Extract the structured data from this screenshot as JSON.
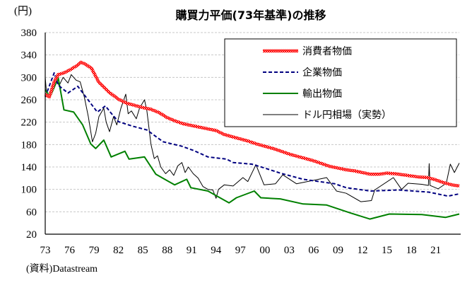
{
  "chart_data": {
    "type": "line",
    "title": "購買力平価(73年基準)の推移",
    "ylabel": "(円)",
    "xlabel": "",
    "source": "(資料)Datastream",
    "ylim": [
      20,
      380
    ],
    "yticks": [
      20,
      60,
      100,
      140,
      180,
      220,
      260,
      300,
      340,
      380
    ],
    "xlim": [
      1973,
      2023.9
    ],
    "xticks": [
      {
        "year": 1973,
        "label": "73"
      },
      {
        "year": 1976,
        "label": "76"
      },
      {
        "year": 1979,
        "label": "79"
      },
      {
        "year": 1982,
        "label": "82"
      },
      {
        "year": 1985,
        "label": "85"
      },
      {
        "year": 1988,
        "label": "88"
      },
      {
        "year": 1991,
        "label": "91"
      },
      {
        "year": 1994,
        "label": "94"
      },
      {
        "year": 1997,
        "label": "97"
      },
      {
        "year": 2000,
        "label": "00"
      },
      {
        "year": 2003,
        "label": "03"
      },
      {
        "year": 2006,
        "label": "06"
      },
      {
        "year": 2009,
        "label": "09"
      },
      {
        "year": 2012,
        "label": "12"
      },
      {
        "year": 2015,
        "label": "15"
      },
      {
        "year": 2018,
        "label": "18"
      },
      {
        "year": 2021,
        "label": "21"
      }
    ],
    "grid": true,
    "legend_position": "top-right",
    "series": [
      {
        "name": "消費者物価",
        "color": "#ff0000",
        "style": "checkered",
        "points": [
          [
            1973,
            270
          ],
          [
            1973.5,
            265
          ],
          [
            1974.1,
            292
          ],
          [
            1974.6,
            305
          ],
          [
            1975.3,
            308
          ],
          [
            1976,
            313
          ],
          [
            1976.8,
            320
          ],
          [
            1977.4,
            327
          ],
          [
            1978,
            323
          ],
          [
            1978.7,
            316
          ],
          [
            1979.6,
            291
          ],
          [
            1980.8,
            274
          ],
          [
            1982,
            261
          ],
          [
            1983,
            254
          ],
          [
            1984,
            250
          ],
          [
            1985,
            246
          ],
          [
            1986,
            243
          ],
          [
            1987,
            237
          ],
          [
            1988,
            228
          ],
          [
            1989,
            222
          ],
          [
            1990,
            217
          ],
          [
            1991,
            214
          ],
          [
            1992,
            211
          ],
          [
            1993,
            208
          ],
          [
            1994,
            205
          ],
          [
            1995,
            198
          ],
          [
            1996,
            194
          ],
          [
            1997,
            190
          ],
          [
            1998,
            186
          ],
          [
            1999,
            181
          ],
          [
            2000,
            177
          ],
          [
            2001,
            173
          ],
          [
            2002,
            168
          ],
          [
            2003,
            163
          ],
          [
            2004,
            159
          ],
          [
            2005,
            155
          ],
          [
            2006,
            151
          ],
          [
            2007,
            146
          ],
          [
            2008,
            141
          ],
          [
            2009,
            138
          ],
          [
            2010,
            135
          ],
          [
            2011,
            133
          ],
          [
            2012,
            130
          ],
          [
            2013,
            127
          ],
          [
            2014,
            127
          ],
          [
            2015,
            129
          ],
          [
            2016,
            128
          ],
          [
            2017,
            126
          ],
          [
            2018,
            124
          ],
          [
            2019,
            122
          ],
          [
            2020,
            121
          ],
          [
            2021,
            117
          ],
          [
            2022,
            112
          ],
          [
            2023,
            108
          ],
          [
            2023.9,
            106
          ]
        ]
      },
      {
        "name": "企業物価",
        "color": "#000080",
        "style": "dashed",
        "points": [
          [
            1973,
            265
          ],
          [
            1974.1,
            308
          ],
          [
            1974.6,
            286
          ],
          [
            1975.8,
            272
          ],
          [
            1977,
            284
          ],
          [
            1978.2,
            261
          ],
          [
            1979.4,
            238
          ],
          [
            1980.4,
            249
          ],
          [
            1981.1,
            236
          ],
          [
            1982,
            221
          ],
          [
            1983.7,
            213
          ],
          [
            1985.5,
            206
          ],
          [
            1987.5,
            185
          ],
          [
            1989.8,
            177
          ],
          [
            1991.3,
            169
          ],
          [
            1993,
            158
          ],
          [
            1995.3,
            154
          ],
          [
            1996.1,
            148
          ],
          [
            1998.4,
            145
          ],
          [
            2000,
            138
          ],
          [
            2001.9,
            129
          ],
          [
            2004.7,
            118
          ],
          [
            2008.6,
            110
          ],
          [
            2010,
            103
          ],
          [
            2013,
            97
          ],
          [
            2016.4,
            99
          ],
          [
            2020.2,
            95
          ],
          [
            2022.5,
            88
          ],
          [
            2023.9,
            92
          ]
        ]
      },
      {
        "name": "輸出物価",
        "color": "#008000",
        "style": "solid",
        "points": [
          [
            1973,
            278
          ],
          [
            1973.6,
            265
          ],
          [
            1974.6,
            299
          ],
          [
            1975.3,
            242
          ],
          [
            1976.5,
            238
          ],
          [
            1977.6,
            215
          ],
          [
            1978.6,
            181
          ],
          [
            1979.2,
            173
          ],
          [
            1980.2,
            188
          ],
          [
            1981.1,
            158
          ],
          [
            1982.8,
            168
          ],
          [
            1983.3,
            154
          ],
          [
            1985.2,
            158
          ],
          [
            1986.6,
            127
          ],
          [
            1988.9,
            108
          ],
          [
            1990.4,
            118
          ],
          [
            1990.9,
            103
          ],
          [
            1993,
            97
          ],
          [
            1995.6,
            76
          ],
          [
            1996.5,
            85
          ],
          [
            1998.7,
            97
          ],
          [
            1999.5,
            85
          ],
          [
            2001.9,
            83
          ],
          [
            2004.7,
            74
          ],
          [
            2007.6,
            72
          ],
          [
            2010.5,
            58
          ],
          [
            2012.9,
            47
          ],
          [
            2015.3,
            56
          ],
          [
            2019.3,
            55
          ],
          [
            2022.2,
            50
          ],
          [
            2023.9,
            56
          ]
        ]
      },
      {
        "name": "ドル円相場（実勢）",
        "color": "#000000",
        "style": "thin",
        "points": [
          [
            1973,
            300
          ],
          [
            1973.2,
            265
          ],
          [
            1973.8,
            275
          ],
          [
            1974.3,
            300
          ],
          [
            1974.7,
            285
          ],
          [
            1975.2,
            300
          ],
          [
            1975.8,
            290
          ],
          [
            1976.2,
            305
          ],
          [
            1976.8,
            295
          ],
          [
            1977.3,
            292
          ],
          [
            1977.8,
            265
          ],
          [
            1978.3,
            230
          ],
          [
            1978.8,
            185
          ],
          [
            1979.2,
            200
          ],
          [
            1979.6,
            230
          ],
          [
            1980.2,
            245
          ],
          [
            1980.5,
            220
          ],
          [
            1980.9,
            203
          ],
          [
            1981.4,
            230
          ],
          [
            1981.8,
            215
          ],
          [
            1982.3,
            245
          ],
          [
            1982.9,
            270
          ],
          [
            1983.2,
            235
          ],
          [
            1983.6,
            240
          ],
          [
            1984.2,
            226
          ],
          [
            1984.6,
            245
          ],
          [
            1985.2,
            260
          ],
          [
            1985.5,
            240
          ],
          [
            1986,
            180
          ],
          [
            1986.4,
            155
          ],
          [
            1986.8,
            160
          ],
          [
            1987.2,
            140
          ],
          [
            1987.8,
            128
          ],
          [
            1988.3,
            135
          ],
          [
            1988.8,
            125
          ],
          [
            1989.3,
            142
          ],
          [
            1989.8,
            148
          ],
          [
            1990.2,
            130
          ],
          [
            1990.6,
            140
          ],
          [
            1991.2,
            128
          ],
          [
            1991.8,
            120
          ],
          [
            1992.4,
            105
          ],
          [
            1993,
            100
          ],
          [
            1993.6,
            99
          ],
          [
            1994,
            84
          ],
          [
            1994.3,
            100
          ],
          [
            1995,
            108
          ],
          [
            1996.1,
            106
          ],
          [
            1997.3,
            121
          ],
          [
            1997.9,
            114
          ],
          [
            1998.9,
            144
          ],
          [
            1999.9,
            108
          ],
          [
            2001.3,
            110
          ],
          [
            2002.2,
            126
          ],
          [
            2003.9,
            110
          ],
          [
            2005.6,
            115
          ],
          [
            2007.6,
            121
          ],
          [
            2008.8,
            97
          ],
          [
            2010,
            93
          ],
          [
            2011.8,
            78
          ],
          [
            2013.1,
            80
          ],
          [
            2013.5,
            99
          ],
          [
            2015.8,
            121
          ],
          [
            2016.8,
            100
          ],
          [
            2017.6,
            111
          ],
          [
            2019.3,
            109
          ],
          [
            2020.1,
            107
          ],
          [
            2020.2,
            146
          ],
          [
            2020.3,
            107
          ],
          [
            2021.3,
            101
          ],
          [
            2022.3,
            111
          ],
          [
            2022.8,
            145
          ],
          [
            2023.3,
            130
          ],
          [
            2023.9,
            147
          ]
        ]
      }
    ]
  }
}
